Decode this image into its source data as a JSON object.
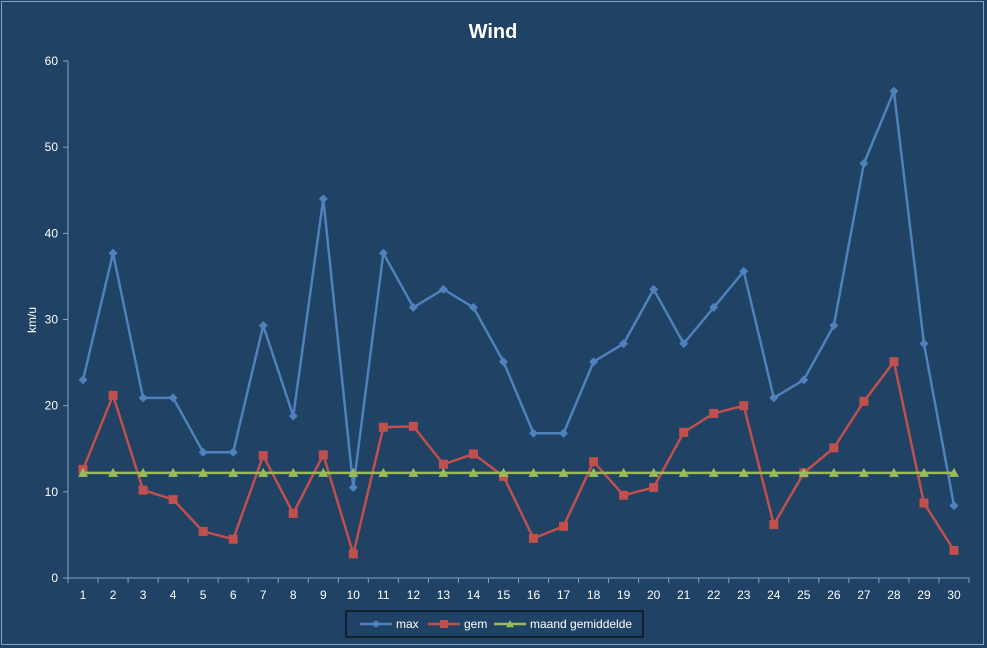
{
  "chart_data": {
    "type": "line",
    "title": "Wind",
    "xlabel": "",
    "ylabel": "km/u",
    "ylim": [
      0,
      60
    ],
    "yticks": [
      0,
      10,
      20,
      30,
      40,
      50,
      60
    ],
    "categories": [
      "1",
      "2",
      "3",
      "4",
      "5",
      "6",
      "7",
      "8",
      "9",
      "10",
      "11",
      "12",
      "13",
      "14",
      "15",
      "16",
      "17",
      "18",
      "19",
      "20",
      "21",
      "22",
      "23",
      "24",
      "25",
      "26",
      "27",
      "28",
      "29",
      "30"
    ],
    "grid": false,
    "legend_position": "bottom",
    "series": [
      {
        "name": "max",
        "color": "#4f81bd",
        "marker": "diamond",
        "values": [
          23.0,
          37.7,
          20.9,
          20.9,
          14.6,
          14.6,
          29.3,
          18.8,
          44.0,
          10.5,
          37.7,
          31.4,
          33.5,
          31.4,
          25.1,
          16.8,
          16.8,
          25.1,
          27.2,
          33.5,
          27.2,
          31.4,
          35.6,
          20.9,
          23.0,
          29.3,
          48.1,
          56.5,
          27.2,
          8.4
        ]
      },
      {
        "name": "gem",
        "color": "#c0504d",
        "marker": "square",
        "values": [
          12.6,
          21.2,
          10.2,
          9.1,
          5.4,
          4.5,
          14.2,
          7.5,
          14.3,
          2.8,
          17.5,
          17.6,
          13.2,
          14.4,
          11.8,
          4.6,
          6.0,
          13.5,
          9.6,
          10.5,
          16.9,
          19.1,
          20.0,
          6.2,
          12.2,
          15.1,
          20.5,
          25.1,
          8.7,
          3.2
        ]
      },
      {
        "name": "maand gemiddelde",
        "color": "#9bbb59",
        "marker": "triangle",
        "values": [
          12.2,
          12.2,
          12.2,
          12.2,
          12.2,
          12.2,
          12.2,
          12.2,
          12.2,
          12.2,
          12.2,
          12.2,
          12.2,
          12.2,
          12.2,
          12.2,
          12.2,
          12.2,
          12.2,
          12.2,
          12.2,
          12.2,
          12.2,
          12.2,
          12.2,
          12.2,
          12.2,
          12.2,
          12.2,
          12.2
        ]
      }
    ]
  }
}
